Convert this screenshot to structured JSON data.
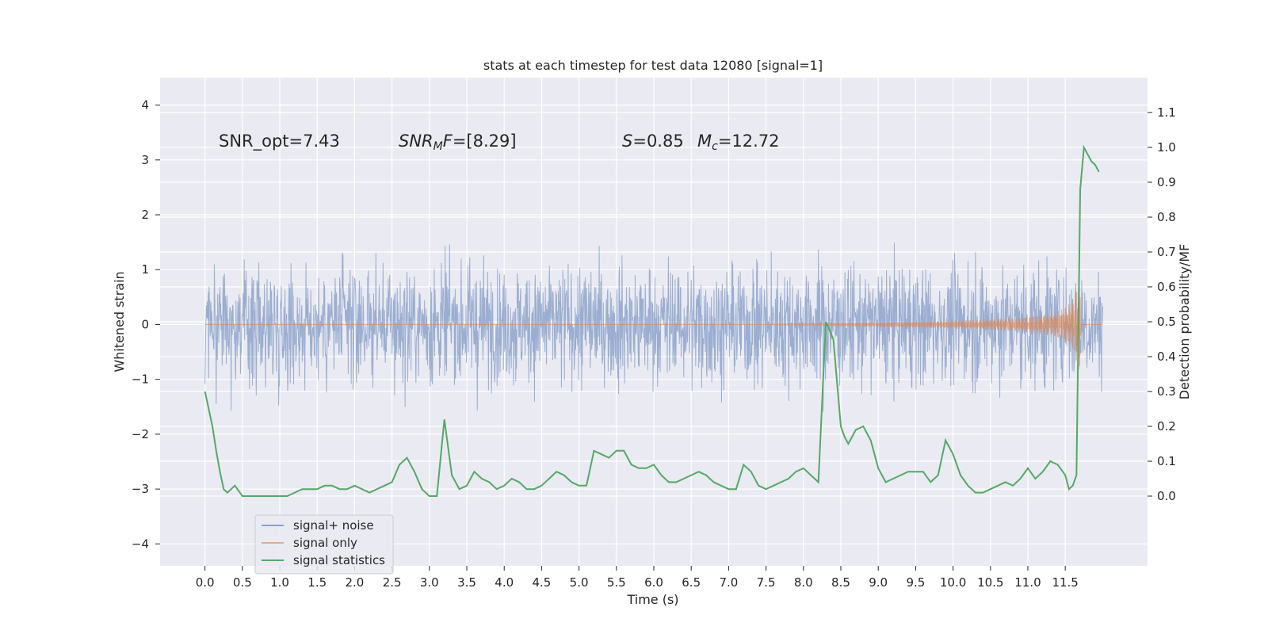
{
  "chart_data": {
    "type": "line",
    "title": "stats at each timestep for test data 12080 [signal=1]",
    "xlabel": "Time (s)",
    "ylabel_left": "Whitened strain",
    "ylabel_right": "Detection probability/MF",
    "xlim": [
      -0.6,
      12.6
    ],
    "ylim_left": [
      -4.4,
      4.5
    ],
    "ylim_right": [
      -0.2,
      1.2
    ],
    "x_ticks": [
      "0.0",
      "0.5",
      "1.0",
      "1.5",
      "2.0",
      "2.5",
      "3.0",
      "3.5",
      "4.0",
      "4.5",
      "5.0",
      "5.5",
      "6.0",
      "6.5",
      "7.0",
      "7.5",
      "8.0",
      "8.5",
      "9.0",
      "9.5",
      "10.0",
      "10.5",
      "11.0",
      "11.5"
    ],
    "y_left_ticks": [
      "4",
      "3",
      "2",
      "1",
      "0",
      "−1",
      "−2",
      "−3",
      "−4"
    ],
    "y_right_ticks": [
      "1.1",
      "1.0",
      "0.9",
      "0.8",
      "0.7",
      "0.6",
      "0.5",
      "0.4",
      "0.3",
      "0.2",
      "0.1",
      "0.0"
    ],
    "grid": true,
    "legend_position": "lower-left",
    "annotations": {
      "snr_opt": "SNR_opt=7.43",
      "snr_mf": "=[8.29]",
      "snr_mf_symbol": "SNR",
      "snr_mf_sub": "M",
      "snr_mf_tail": "F",
      "s_symbol": "S",
      "s_value": "=0.85",
      "mc_symbol": "M",
      "mc_sub": "c",
      "mc_value": "=12.72"
    },
    "series": [
      {
        "name": "signal+ noise",
        "axis": "left",
        "color": "#4c72b0",
        "note_range": [
          -3.8,
          4.1
        ],
        "x_range": [
          0.0,
          12.0
        ]
      },
      {
        "name": "signal only",
        "axis": "left",
        "color": "#dd8452",
        "envelope": {
          "x": [
            7.5,
            8.0,
            9.0,
            10.0,
            10.5,
            11.0,
            11.3,
            11.5,
            11.6,
            11.65,
            11.68,
            11.7,
            11.72,
            12.0
          ],
          "amp": [
            0.0,
            0.02,
            0.04,
            0.07,
            0.1,
            0.14,
            0.2,
            0.3,
            0.45,
            0.7,
            1.1,
            0.6,
            0.0,
            0.0
          ]
        }
      },
      {
        "name": "signal statistics",
        "axis": "right",
        "color": "#55a868",
        "x": [
          0.0,
          0.05,
          0.1,
          0.15,
          0.2,
          0.25,
          0.3,
          0.35,
          0.4,
          0.5,
          0.6,
          0.7,
          0.8,
          0.9,
          1.0,
          1.1,
          1.2,
          1.3,
          1.4,
          1.5,
          1.6,
          1.7,
          1.8,
          1.9,
          2.0,
          2.1,
          2.2,
          2.3,
          2.4,
          2.5,
          2.6,
          2.7,
          2.8,
          2.9,
          3.0,
          3.1,
          3.2,
          3.3,
          3.4,
          3.5,
          3.6,
          3.7,
          3.8,
          3.9,
          4.0,
          4.1,
          4.2,
          4.3,
          4.4,
          4.5,
          4.6,
          4.7,
          4.8,
          4.9,
          5.0,
          5.1,
          5.2,
          5.3,
          5.4,
          5.5,
          5.6,
          5.7,
          5.8,
          5.9,
          6.0,
          6.1,
          6.2,
          6.3,
          6.4,
          6.5,
          6.6,
          6.7,
          6.8,
          6.9,
          7.0,
          7.1,
          7.2,
          7.3,
          7.4,
          7.5,
          7.6,
          7.7,
          7.8,
          7.9,
          8.0,
          8.1,
          8.2,
          8.3,
          8.4,
          8.5,
          8.55,
          8.6,
          8.7,
          8.8,
          8.9,
          9.0,
          9.1,
          9.2,
          9.3,
          9.4,
          9.5,
          9.6,
          9.7,
          9.8,
          9.9,
          10.0,
          10.1,
          10.2,
          10.3,
          10.4,
          10.5,
          10.6,
          10.7,
          10.8,
          10.9,
          11.0,
          11.1,
          11.2,
          11.3,
          11.4,
          11.5,
          11.55,
          11.6,
          11.65,
          11.7,
          11.75,
          11.8,
          11.85,
          11.9,
          11.95
        ],
        "values": [
          0.3,
          0.25,
          0.2,
          0.13,
          0.07,
          0.02,
          0.01,
          0.02,
          0.03,
          0.0,
          0.0,
          0.0,
          0.0,
          0.0,
          0.0,
          0.0,
          0.01,
          0.02,
          0.02,
          0.02,
          0.03,
          0.03,
          0.02,
          0.02,
          0.03,
          0.02,
          0.01,
          0.02,
          0.03,
          0.04,
          0.09,
          0.11,
          0.07,
          0.02,
          0.0,
          0.0,
          0.22,
          0.06,
          0.02,
          0.03,
          0.07,
          0.05,
          0.04,
          0.02,
          0.03,
          0.05,
          0.04,
          0.02,
          0.02,
          0.03,
          0.05,
          0.07,
          0.06,
          0.04,
          0.03,
          0.03,
          0.13,
          0.12,
          0.11,
          0.13,
          0.13,
          0.09,
          0.08,
          0.08,
          0.09,
          0.06,
          0.04,
          0.04,
          0.05,
          0.06,
          0.07,
          0.06,
          0.04,
          0.03,
          0.02,
          0.02,
          0.09,
          0.07,
          0.03,
          0.02,
          0.03,
          0.04,
          0.05,
          0.07,
          0.08,
          0.06,
          0.04,
          0.5,
          0.45,
          0.2,
          0.17,
          0.15,
          0.19,
          0.2,
          0.16,
          0.08,
          0.04,
          0.05,
          0.06,
          0.07,
          0.07,
          0.07,
          0.04,
          0.06,
          0.16,
          0.12,
          0.06,
          0.03,
          0.01,
          0.01,
          0.02,
          0.03,
          0.04,
          0.03,
          0.05,
          0.08,
          0.05,
          0.07,
          0.1,
          0.09,
          0.06,
          0.02,
          0.03,
          0.06,
          0.88,
          1.0,
          0.98,
          0.96,
          0.95,
          0.93
        ]
      }
    ],
    "legend": [
      "signal+ noise",
      "signal only",
      "signal statistics"
    ]
  }
}
